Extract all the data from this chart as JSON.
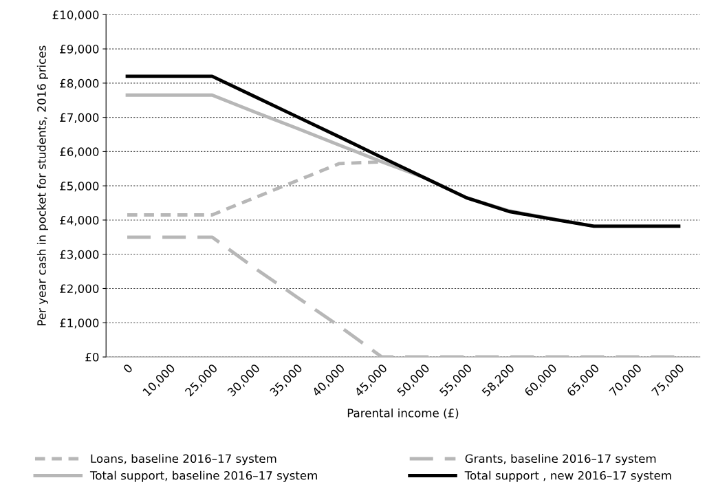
{
  "chart_data": {
    "type": "line",
    "xlabel": "Parental income (£)",
    "ylabel": "Per year cash in pocket for students, 2016 prices",
    "categories": [
      "0",
      "10,000",
      "25,000",
      "30,000",
      "35,000",
      "40,000",
      "45,000",
      "50,000",
      "55,000",
      "58,200",
      "60,000",
      "65,000",
      "70,000",
      "75,000"
    ],
    "ylim": [
      0,
      10000
    ],
    "yticks": [
      {
        "value": 0,
        "label": "£0"
      },
      {
        "value": 1000,
        "label": "£1,000"
      },
      {
        "value": 2000,
        "label": "£2,000"
      },
      {
        "value": 3000,
        "label": "£3,000"
      },
      {
        "value": 4000,
        "label": "£4,000"
      },
      {
        "value": 5000,
        "label": "£5,000"
      },
      {
        "value": 6000,
        "label": "£6,000"
      },
      {
        "value": 7000,
        "label": "£7,000"
      },
      {
        "value": 8000,
        "label": "£8,000"
      },
      {
        "value": 9000,
        "label": "£9,000"
      },
      {
        "value": 10000,
        "label": "£10,000"
      }
    ],
    "grid": "y",
    "legend": "bottom",
    "series": [
      {
        "name": "Loans, baseline 2016–17 system",
        "color": "#b7b7b7",
        "line_style": "dotted",
        "values": [
          4150,
          4150,
          4150,
          4650,
          5150,
          5650,
          5700,
          null,
          null,
          null,
          null,
          null,
          null,
          null
        ]
      },
      {
        "name": "Grants, baseline 2016–17 system",
        "color": "#b7b7b7",
        "line_style": "dashed",
        "values": [
          3500,
          3500,
          3500,
          2600,
          1750,
          900,
          0,
          0,
          0,
          0,
          0,
          0,
          0,
          0
        ]
      },
      {
        "name": "Total support, baseline 2016–17 system",
        "color": "#b7b7b7",
        "line_style": "solid",
        "values": [
          7650,
          7650,
          7650,
          7160,
          6680,
          6190,
          5700,
          5240,
          4650,
          4270,
          4040,
          3820,
          3820,
          3820
        ]
      },
      {
        "name": "Total support , new 2016–17 system",
        "color": "#000000",
        "line_style": "solid",
        "values": [
          8200,
          8200,
          8200,
          7610,
          7020,
          6430,
          5830,
          5240,
          4650,
          4250,
          4030,
          3820,
          3820,
          3820
        ]
      }
    ]
  }
}
